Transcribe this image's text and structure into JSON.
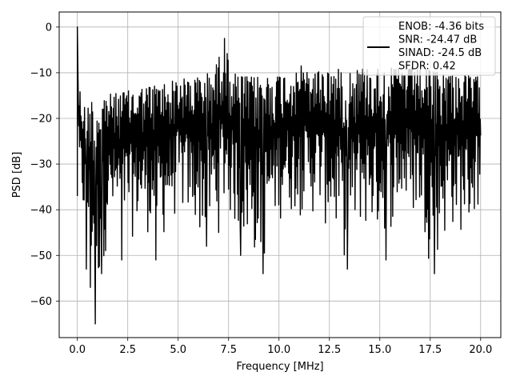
{
  "chart_data": {
    "type": "line",
    "xlabel": "Frequency [MHz]",
    "ylabel": "PSD [dB]",
    "xlim": [
      -0.9,
      21.0
    ],
    "ylim": [
      -68.0,
      3.3
    ],
    "grid": true,
    "x_ticks": [
      0.0,
      2.5,
      5.0,
      7.5,
      10.0,
      12.5,
      15.0,
      17.5,
      20.0
    ],
    "x_tick_labels": [
      "0.0",
      "2.5",
      "5.0",
      "7.5",
      "10.0",
      "12.5",
      "15.0",
      "17.5",
      "20.0"
    ],
    "y_ticks": [
      0,
      -10,
      -20,
      -30,
      -40,
      -50,
      -60
    ],
    "y_tick_labels": [
      "0",
      "−10",
      "−20",
      "−30",
      "−40",
      "−50",
      "−60"
    ],
    "legend": {
      "placement": "top-right",
      "lines": [
        "ENOB: -4.36 bits",
        "SNR: -24.47 dB",
        "SINAD: -24.5 dB",
        "SFDR: 0.42"
      ]
    },
    "series": [
      {
        "color": "#000000",
        "x_range": [
          0.0,
          20.0
        ],
        "points": 900,
        "upper_envelope": [
          [
            0.0,
            0.0
          ],
          [
            0.05,
            -12
          ],
          [
            0.3,
            -17
          ],
          [
            1.0,
            -15
          ],
          [
            2.0,
            -14.5
          ],
          [
            3.0,
            -13.5
          ],
          [
            4.0,
            -12.5
          ],
          [
            5.0,
            -11.5
          ],
          [
            6.0,
            -11
          ],
          [
            6.8,
            -9.5
          ],
          [
            7.3,
            -2.5
          ],
          [
            7.6,
            -10
          ],
          [
            8.5,
            -11
          ],
          [
            10.0,
            -10.5
          ],
          [
            12.0,
            -9.5
          ],
          [
            14.0,
            -9
          ],
          [
            16.0,
            -9
          ],
          [
            17.5,
            -9.5
          ],
          [
            18.5,
            -10
          ],
          [
            20.0,
            -11
          ]
        ],
        "lower_envelope": [
          [
            0.0,
            -37
          ],
          [
            0.5,
            -50
          ],
          [
            0.9,
            -65
          ],
          [
            1.5,
            -47
          ],
          [
            2.5,
            -47
          ],
          [
            3.5,
            -46
          ],
          [
            4.0,
            -50
          ],
          [
            5.0,
            -42
          ],
          [
            6.0,
            -47
          ],
          [
            6.5,
            -49
          ],
          [
            7.5,
            -43
          ],
          [
            8.2,
            -50
          ],
          [
            9.2,
            -54
          ],
          [
            10.0,
            -43
          ],
          [
            11.0,
            -42
          ],
          [
            12.0,
            -43
          ],
          [
            13.4,
            -53
          ],
          [
            14.0,
            -46
          ],
          [
            15.0,
            -48
          ],
          [
            16.0,
            -43
          ],
          [
            17.0,
            -44
          ],
          [
            17.6,
            -54
          ],
          [
            18.5,
            -46
          ],
          [
            19.5,
            -47
          ],
          [
            20.0,
            -40
          ]
        ],
        "notable_dips": [
          [
            0.45,
            -53
          ],
          [
            0.65,
            -57
          ],
          [
            0.9,
            -65
          ],
          [
            1.2,
            -54
          ],
          [
            2.2,
            -51
          ],
          [
            3.9,
            -51
          ],
          [
            6.4,
            -48
          ],
          [
            8.1,
            -50
          ],
          [
            9.2,
            -54
          ],
          [
            13.4,
            -53
          ],
          [
            15.3,
            -51
          ],
          [
            17.7,
            -54
          ]
        ],
        "notable_peaks": [
          [
            0.0,
            0.0
          ],
          [
            7.3,
            -2.5
          ],
          [
            11.1,
            -8.5
          ],
          [
            16.6,
            -8.8
          ]
        ]
      }
    ]
  }
}
